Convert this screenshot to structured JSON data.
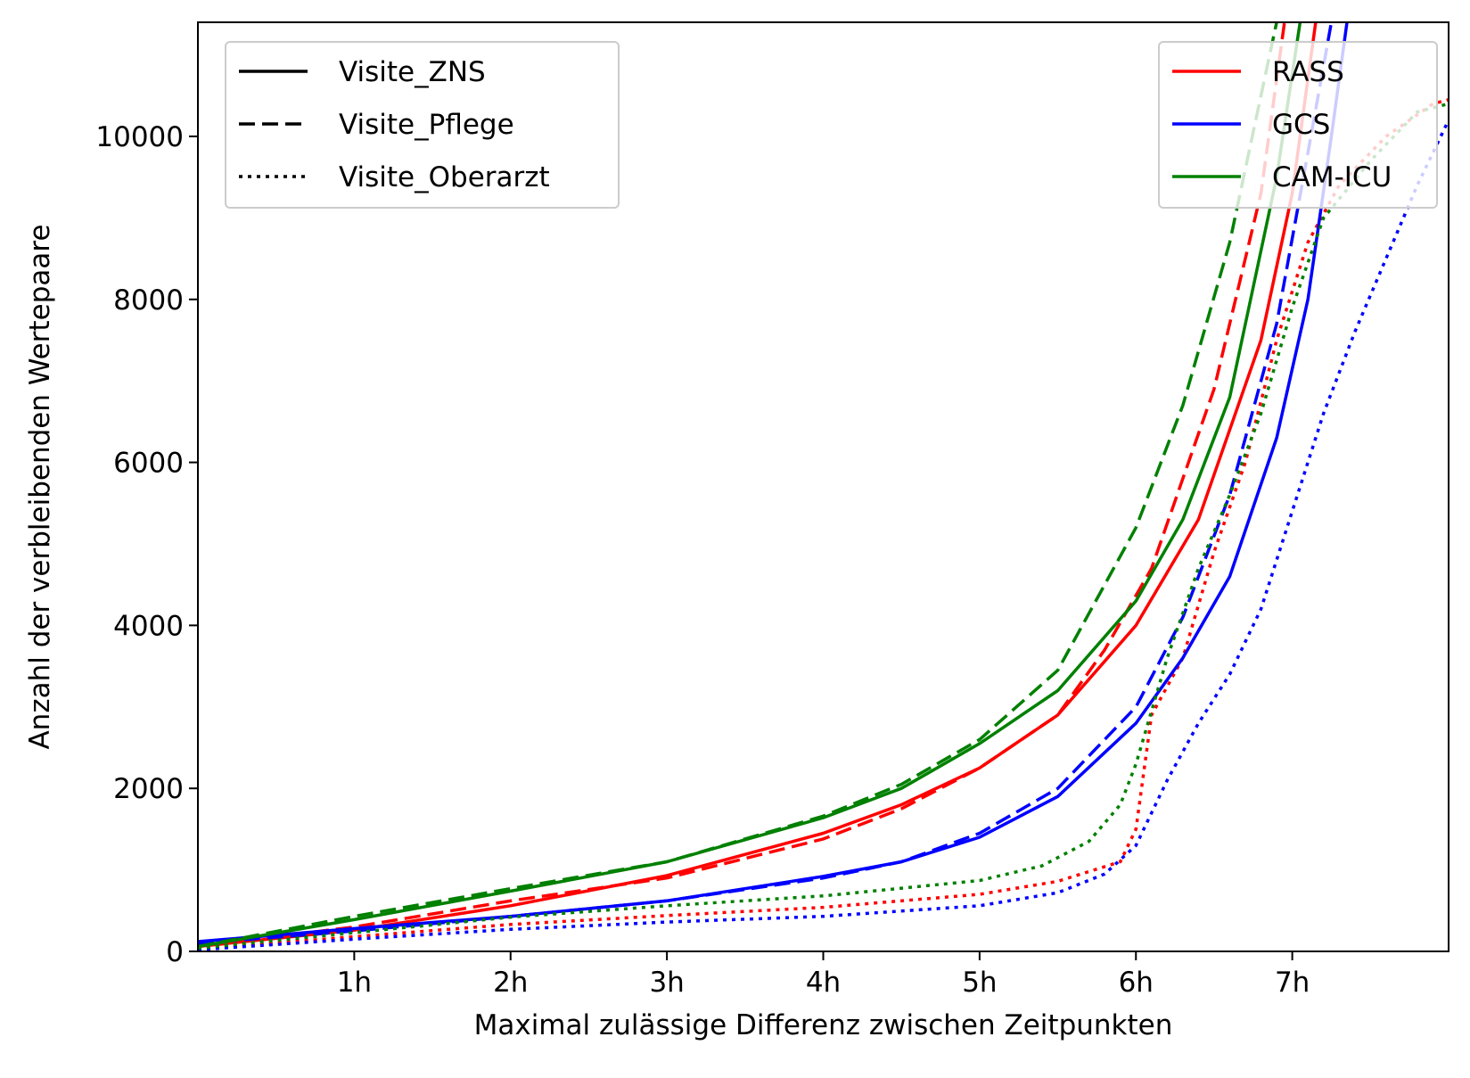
{
  "chart_data": {
    "type": "line",
    "xlabel": "Maximal zulässige Differenz zwischen Zeitpunkten",
    "ylabel": "Anzahl der verbleibenden Wertepaare",
    "xlim": [
      0,
      8
    ],
    "ylim": [
      0,
      11400
    ],
    "x_ticks": [
      {
        "value": 1,
        "label": "1h"
      },
      {
        "value": 2,
        "label": "2h"
      },
      {
        "value": 3,
        "label": "3h"
      },
      {
        "value": 4,
        "label": "4h"
      },
      {
        "value": 5,
        "label": "5h"
      },
      {
        "value": 6,
        "label": "6h"
      },
      {
        "value": 7,
        "label": "7h"
      }
    ],
    "y_ticks": [
      {
        "value": 0,
        "label": "0"
      },
      {
        "value": 2000,
        "label": "2000"
      },
      {
        "value": 4000,
        "label": "4000"
      },
      {
        "value": 6000,
        "label": "6000"
      },
      {
        "value": 8000,
        "label": "8000"
      },
      {
        "value": 10000,
        "label": "10000"
      }
    ],
    "grid": false,
    "legend_styles": {
      "placement": "top-left",
      "entries": [
        {
          "label": "Visite_ZNS",
          "dash": "solid"
        },
        {
          "label": "Visite_Pflege",
          "dash": "dashed"
        },
        {
          "label": "Visite_Oberarzt",
          "dash": "dotted"
        }
      ]
    },
    "legend_colors": {
      "placement": "top-right",
      "entries": [
        {
          "label": "RASS",
          "color": "#ff0000"
        },
        {
          "label": "GCS",
          "color": "#0000ff"
        },
        {
          "label": "CAM-ICU",
          "color": "#008000"
        }
      ]
    },
    "series": [
      {
        "score": "RASS",
        "visit": "Visite_ZNS",
        "color": "#ff0000",
        "dash": "solid",
        "x": [
          0,
          1,
          2,
          3,
          4,
          4.5,
          5,
          5.5,
          6,
          6.4,
          6.8,
          7.0,
          7.15
        ],
        "y": [
          60,
          260,
          560,
          930,
          1450,
          1800,
          2250,
          2900,
          4000,
          5300,
          7500,
          9300,
          11400
        ]
      },
      {
        "score": "RASS",
        "visit": "Visite_Pflege",
        "color": "#ff0000",
        "dash": "dashed",
        "x": [
          0,
          1,
          2,
          3,
          4,
          4.5,
          5,
          5.5,
          5.8,
          6.1,
          6.5,
          6.8,
          6.95
        ],
        "y": [
          60,
          300,
          620,
          900,
          1380,
          1750,
          2250,
          2900,
          3700,
          4700,
          6900,
          9300,
          11400
        ]
      },
      {
        "score": "RASS",
        "visit": "Visite_Oberarzt",
        "color": "#ff0000",
        "dash": "dotted",
        "x": [
          0,
          1,
          2,
          3,
          4,
          5,
          5.5,
          5.9,
          6.0,
          6.1,
          6.3,
          6.5,
          6.7,
          6.9,
          7.1,
          7.3,
          7.6,
          7.9,
          8.0
        ],
        "y": [
          30,
          180,
          330,
          440,
          540,
          700,
          860,
          1100,
          1500,
          2900,
          3600,
          4900,
          6000,
          7500,
          8700,
          9400,
          10000,
          10400,
          10450
        ]
      },
      {
        "score": "GCS",
        "visit": "Visite_ZNS",
        "color": "#0000ff",
        "dash": "solid",
        "x": [
          0,
          1,
          2,
          3,
          4,
          4.5,
          5,
          5.5,
          6,
          6.3,
          6.6,
          6.9,
          7.1,
          7.25,
          7.35
        ],
        "y": [
          120,
          280,
          430,
          620,
          920,
          1100,
          1400,
          1900,
          2800,
          3600,
          4600,
          6300,
          8000,
          10000,
          11400
        ]
      },
      {
        "score": "GCS",
        "visit": "Visite_Pflege",
        "color": "#0000ff",
        "dash": "dashed",
        "x": [
          0,
          1,
          2,
          3,
          4,
          4.5,
          5,
          5.5,
          6,
          6.3,
          6.6,
          6.9,
          7.1,
          7.25
        ],
        "y": [
          100,
          250,
          430,
          620,
          900,
          1100,
          1450,
          2000,
          3000,
          4100,
          5600,
          7700,
          9800,
          11400
        ]
      },
      {
        "score": "GCS",
        "visit": "Visite_Oberarzt",
        "color": "#0000ff",
        "dash": "dotted",
        "x": [
          0,
          1,
          2,
          3,
          4,
          5,
          5.5,
          5.8,
          6.0,
          6.2,
          6.4,
          6.6,
          6.8,
          7.0,
          7.2,
          7.4,
          7.6,
          7.8,
          8.0
        ],
        "y": [
          20,
          150,
          270,
          360,
          430,
          560,
          720,
          950,
          1300,
          2100,
          2800,
          3400,
          4200,
          5400,
          6600,
          7600,
          8500,
          9400,
          10200
        ]
      },
      {
        "score": "CAM-ICU",
        "visit": "Visite_ZNS",
        "color": "#008000",
        "dash": "solid",
        "x": [
          0,
          1,
          2,
          3,
          4,
          4.5,
          5,
          5.5,
          6,
          6.3,
          6.6,
          6.9,
          7.05
        ],
        "y": [
          60,
          390,
          740,
          1100,
          1640,
          2000,
          2550,
          3200,
          4300,
          5300,
          6800,
          9500,
          11400
        ]
      },
      {
        "score": "CAM-ICU",
        "visit": "Visite_Pflege",
        "color": "#008000",
        "dash": "dashed",
        "x": [
          0,
          1,
          2,
          3,
          4,
          4.5,
          5,
          5.5,
          6,
          6.3,
          6.6,
          6.8,
          6.9
        ],
        "y": [
          60,
          430,
          770,
          1100,
          1660,
          2050,
          2600,
          3450,
          5200,
          6700,
          8700,
          10500,
          11400
        ]
      },
      {
        "score": "CAM-ICU",
        "visit": "Visite_Oberarzt",
        "color": "#008000",
        "dash": "dotted",
        "x": [
          0,
          1,
          2,
          3,
          4,
          5,
          5.4,
          5.7,
          5.9,
          6.0,
          6.2,
          6.4,
          6.6,
          6.8,
          7.0,
          7.2,
          7.5,
          7.8,
          8.0
        ],
        "y": [
          40,
          230,
          420,
          560,
          680,
          870,
          1050,
          1350,
          1800,
          2300,
          3600,
          4700,
          5600,
          6600,
          7900,
          9000,
          9700,
          10300,
          10400
        ]
      }
    ]
  }
}
